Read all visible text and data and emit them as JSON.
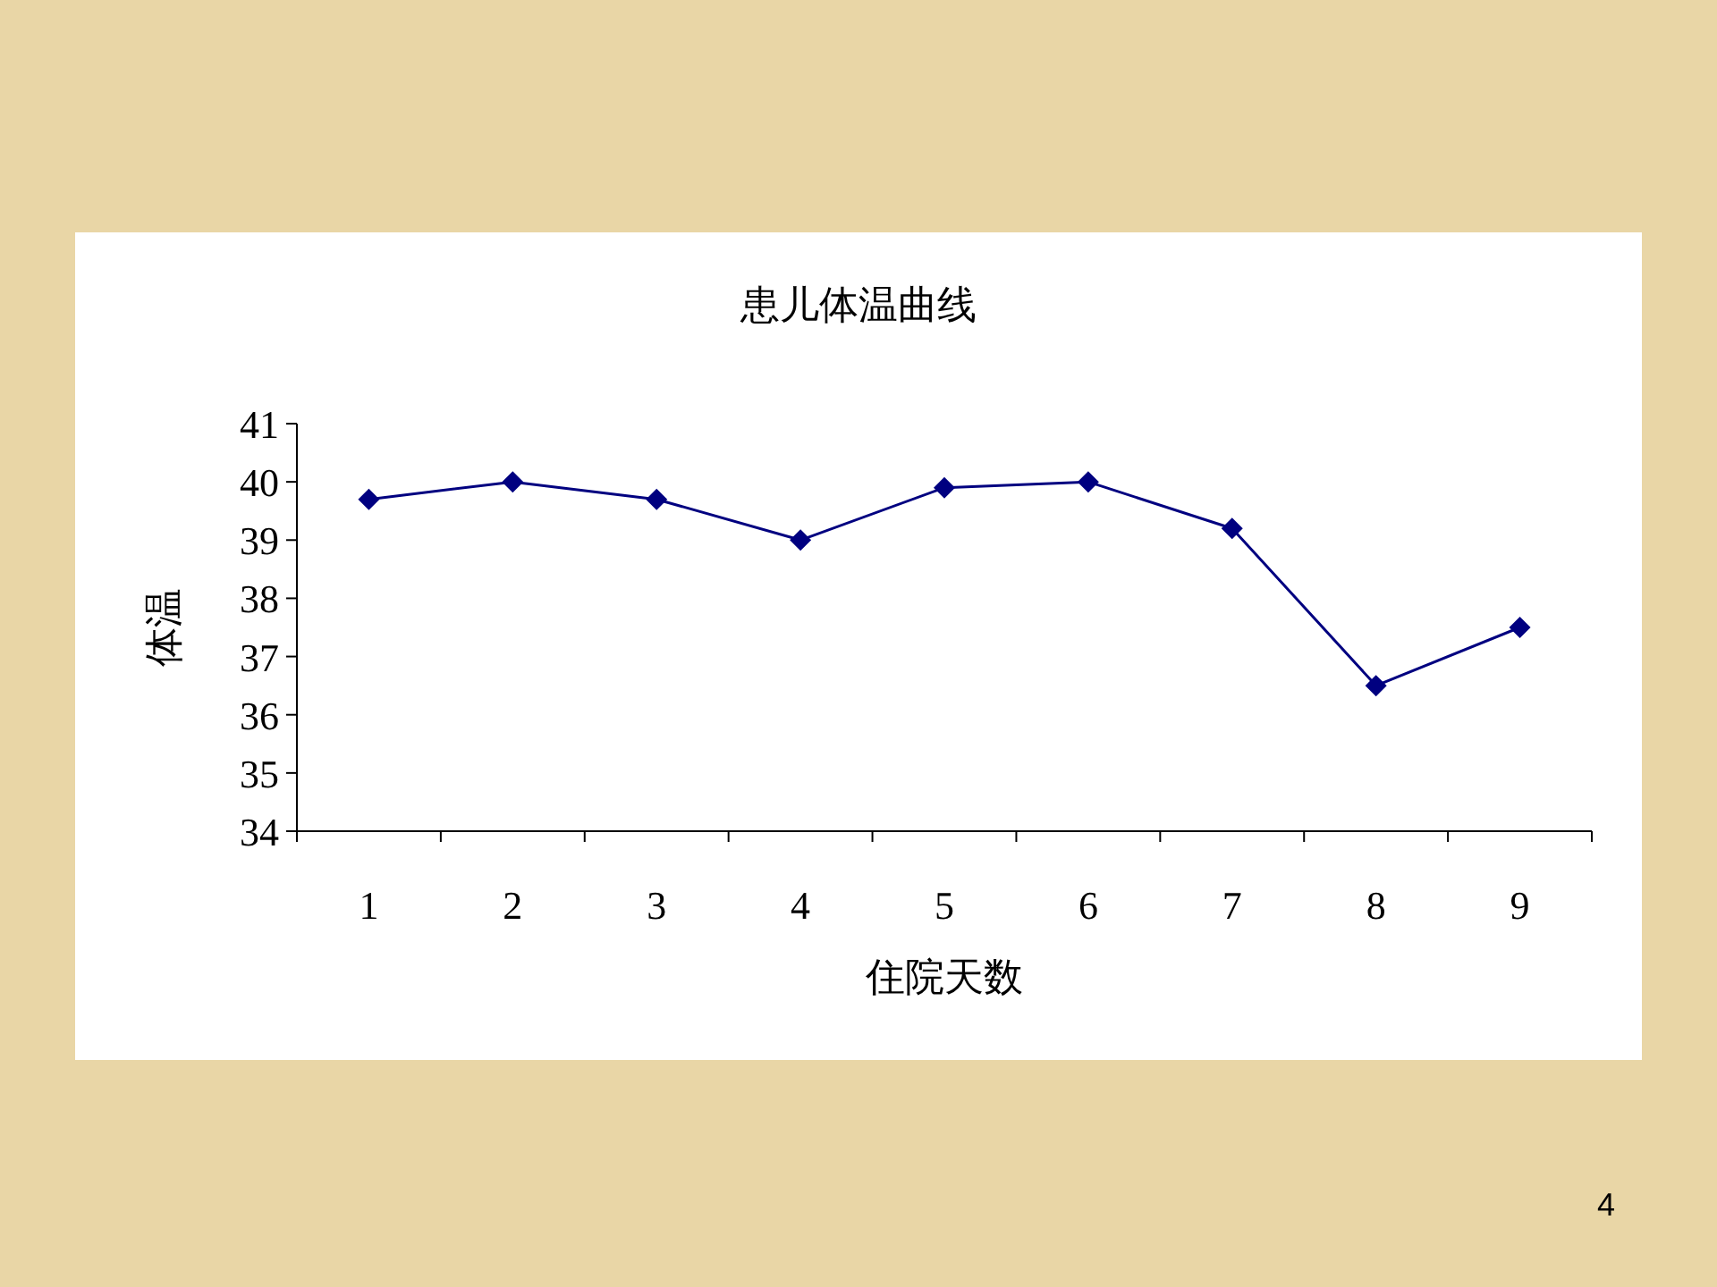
{
  "chart_data": {
    "type": "line",
    "title": "患儿体温曲线",
    "xlabel": "住院天数",
    "ylabel": "体温",
    "categories": [
      "1",
      "2",
      "3",
      "4",
      "5",
      "6",
      "7",
      "8",
      "9"
    ],
    "values": [
      39.7,
      40.0,
      39.7,
      39.0,
      39.9,
      40.0,
      39.2,
      36.5,
      37.5
    ],
    "color": "#000080",
    "marker": "diamond",
    "ylim": [
      34,
      41
    ],
    "yticks": [
      34,
      35,
      36,
      37,
      38,
      39,
      40,
      41
    ],
    "annotations": [
      "4"
    ]
  }
}
